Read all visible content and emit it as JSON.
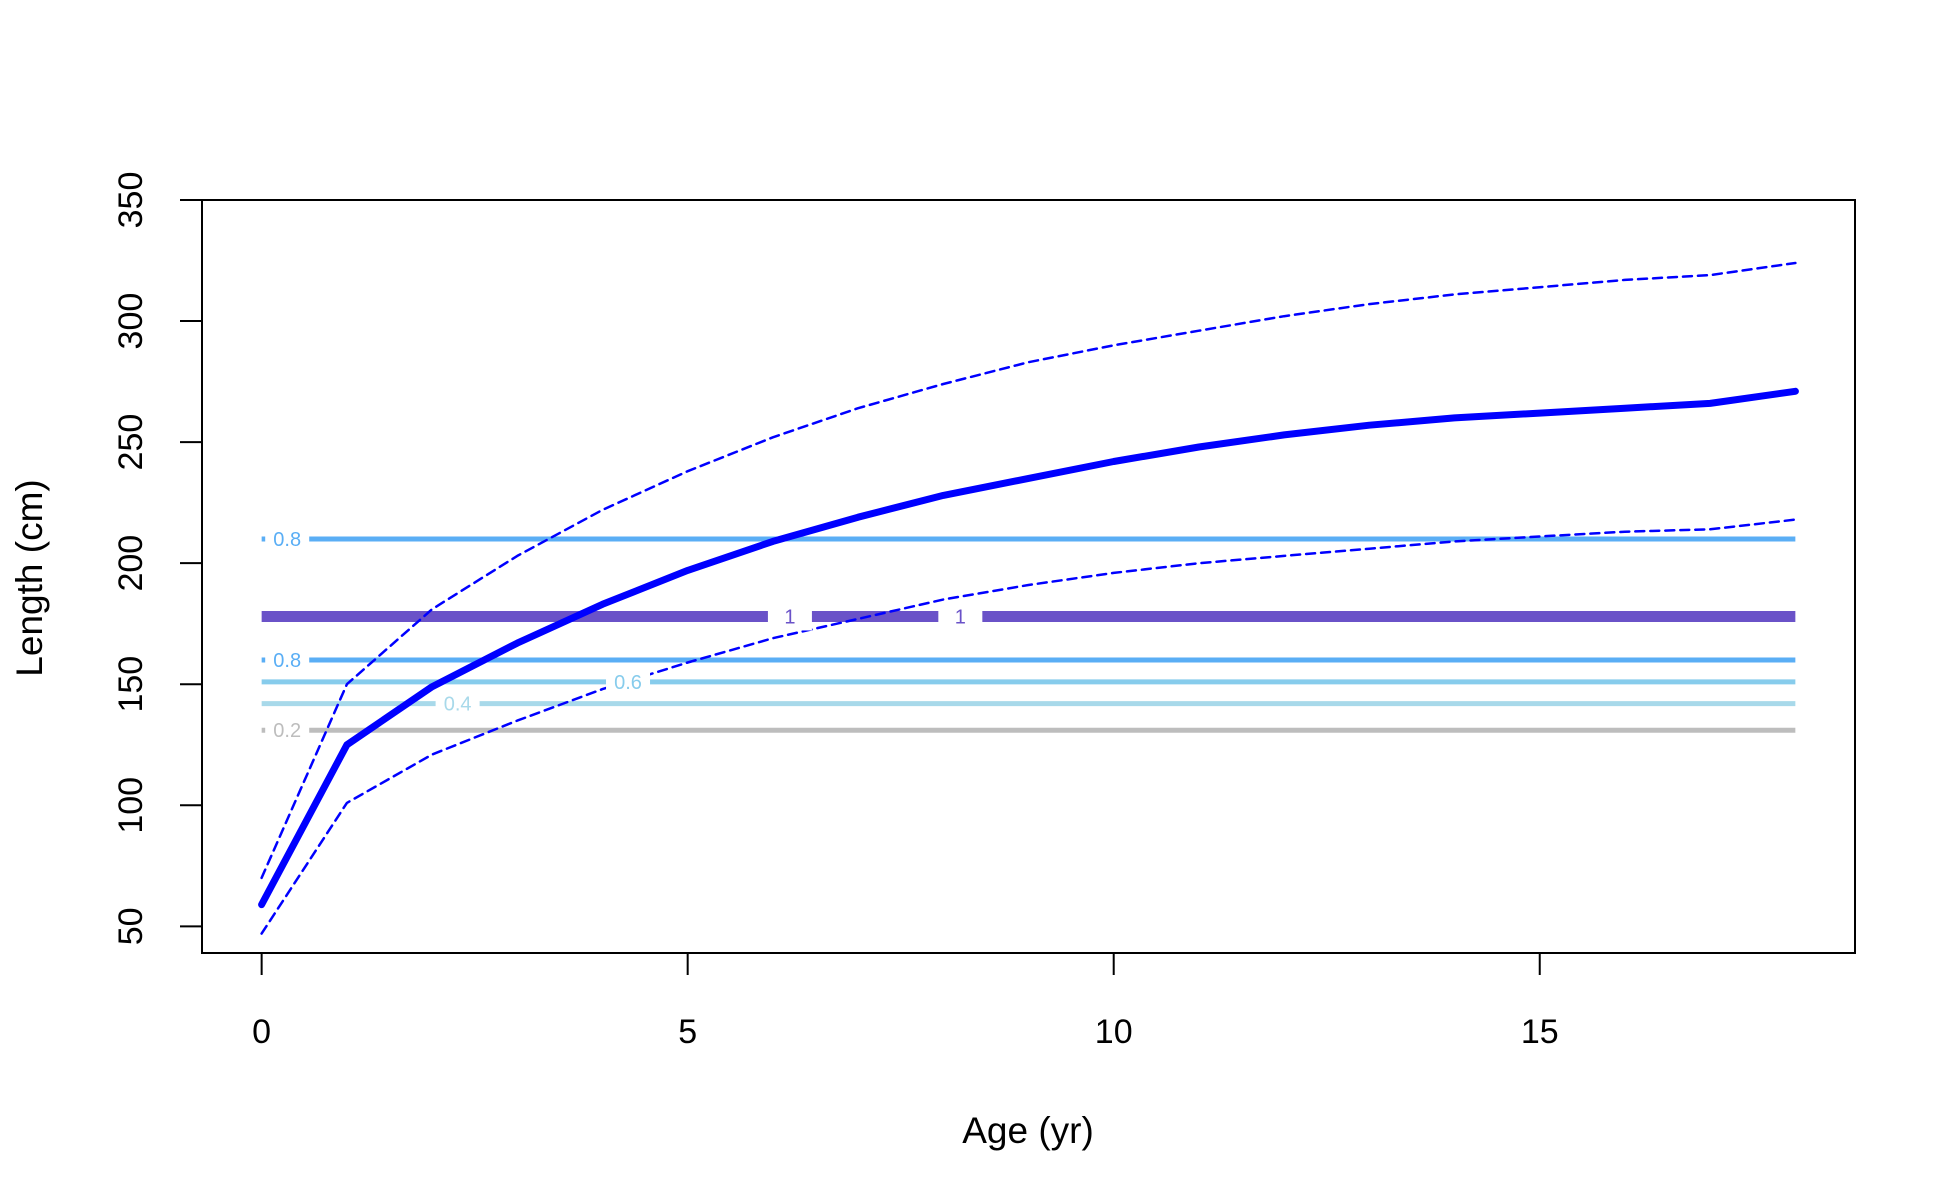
{
  "chart_data": {
    "type": "line",
    "title": "",
    "xlabel": "Age (yr)",
    "ylabel": "Length (cm)",
    "xlim": [
      -0.7,
      18.7
    ],
    "ylim": [
      39,
      350
    ],
    "x_ticks": [
      "0",
      "5",
      "10",
      "15"
    ],
    "y_ticks": [
      "50",
      "100",
      "150",
      "200",
      "250",
      "300",
      "350"
    ],
    "grid": false,
    "legend": "none",
    "ages": [
      0,
      1,
      2,
      3,
      4,
      5,
      6,
      7,
      8,
      9,
      10,
      11,
      12,
      13,
      14,
      15,
      16,
      17,
      18
    ],
    "series": [
      {
        "role": "mean",
        "values": [
          59,
          125,
          149,
          167,
          183,
          197,
          209,
          219,
          228,
          235,
          242,
          248,
          253,
          257,
          260,
          262,
          264,
          266,
          271
        ],
        "color": "#0000ff",
        "style": "solid"
      },
      {
        "role": "upper",
        "values": [
          70,
          150,
          181,
          203,
          222,
          238,
          252,
          264,
          274,
          283,
          290,
          296,
          302,
          307,
          311,
          314,
          317,
          319,
          324
        ],
        "color": "#0000ff",
        "style": "dashed"
      },
      {
        "role": "lower",
        "values": [
          47,
          101,
          121,
          135,
          148,
          159,
          169,
          177,
          185,
          191,
          196,
          200,
          203,
          206,
          209,
          211,
          213,
          214,
          218
        ],
        "color": "#0000ff",
        "style": "dashed"
      }
    ],
    "contours": [
      {
        "y": 210,
        "label": "0.8",
        "color": "#5aaef5",
        "label_ages": [
          0.3
        ]
      },
      {
        "y": 178,
        "label": "1",
        "color": "#6a52c8",
        "label_ages": [
          6.2,
          8.2
        ]
      },
      {
        "y": 160,
        "label": "0.8",
        "color": "#5aaef5",
        "label_ages": [
          0.3
        ]
      },
      {
        "y": 151,
        "label": "0.6",
        "color": "#87ccec",
        "label_ages": [
          4.3
        ]
      },
      {
        "y": 142,
        "label": "0.4",
        "color": "#a8d9ea",
        "label_ages": [
          2.3
        ]
      },
      {
        "y": 131,
        "label": "0.2",
        "color": "#bdbdbd",
        "label_ages": [
          0.3
        ]
      }
    ]
  }
}
